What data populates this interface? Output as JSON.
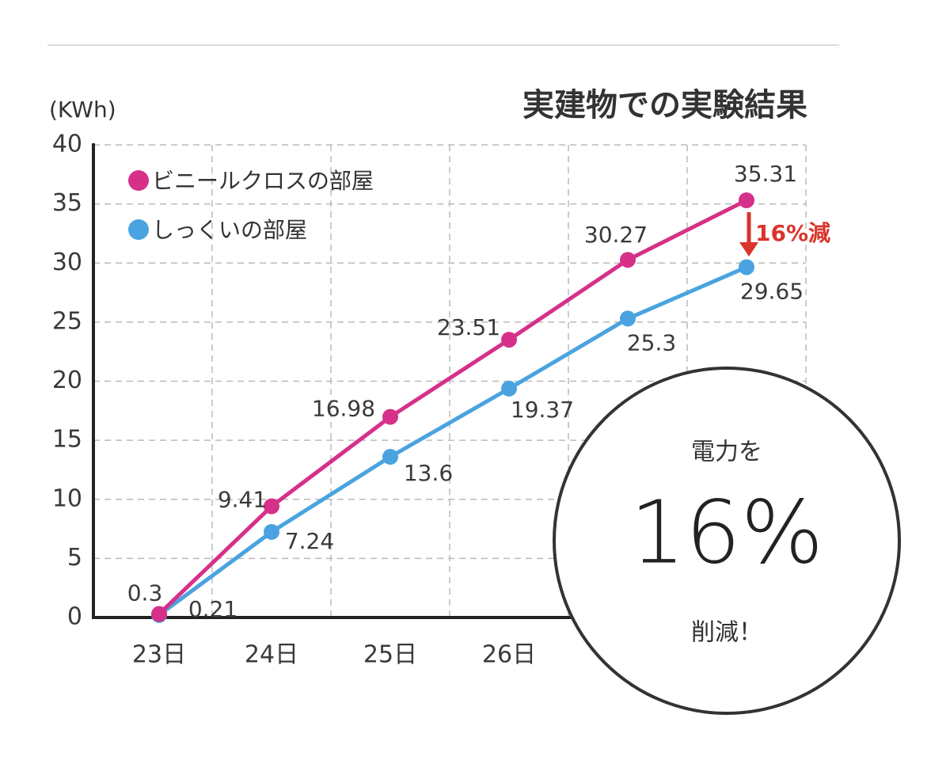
{
  "chart_data": {
    "type": "line",
    "title": "実建物での実験結果",
    "y_label": "(KWh)",
    "categories": [
      "23日",
      "24日",
      "25日",
      "26日",
      null,
      null
    ],
    "series": [
      {
        "name": "しっくいの部屋",
        "color": "#4aa3e0",
        "values": [
          0.21,
          7.24,
          13.6,
          19.37,
          25.3,
          29.65
        ]
      },
      {
        "name": "ビニールクロスの部屋",
        "color": "#d6308a",
        "values": [
          0.3,
          9.41,
          16.98,
          23.51,
          30.27,
          35.31
        ]
      }
    ],
    "ylim": [
      0,
      40
    ],
    "yticks": [
      0,
      5,
      10,
      15,
      20,
      25,
      30,
      35,
      40
    ],
    "grid": true,
    "annotation": "16%減",
    "callout": {
      "top": "電力を",
      "value": "16%",
      "bottom": "削減！"
    }
  }
}
